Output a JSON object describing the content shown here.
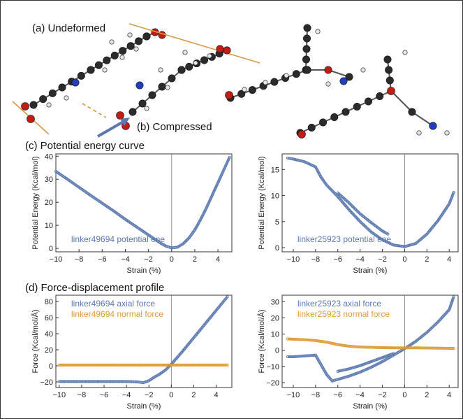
{
  "figure": {
    "label_a": "(a) Undeformed",
    "label_b": "(b) Compressed",
    "label_c": "(c) Potential energy curve",
    "label_d": "(d) Force-displacement profile",
    "colors": {
      "blue": "#5b79b0",
      "orange": "#dd9a35",
      "axis": "#333333"
    }
  },
  "chart_data": [
    {
      "type": "scatter",
      "xlabel": "Strain (%)",
      "ylabel": "Potential Energy (Kcal/mol)",
      "xlim": [
        -10,
        5.2
      ],
      "ylim": [
        -1.5,
        41
      ],
      "xticks": [
        -10,
        -8,
        -6,
        -4,
        -2,
        0,
        2,
        4
      ],
      "yticks": [
        0,
        10,
        20,
        30,
        40
      ],
      "legend_position": "bottom-left",
      "series": [
        {
          "name": "linker49694 potential ene",
          "color": "#5b79b0",
          "x": [
            -10,
            -9,
            -8,
            -7,
            -6,
            -5,
            -4,
            -3,
            -2,
            -1,
            -0.5,
            0,
            0.5,
            1,
            1.5,
            2,
            2.5,
            3,
            3.5,
            4,
            4.5,
            5
          ],
          "y": [
            33.4,
            30,
            26.5,
            23,
            19.6,
            16.2,
            12.6,
            9.2,
            5.8,
            2.4,
            1,
            0.2,
            0.5,
            2,
            4.5,
            8,
            12.5,
            17.5,
            23,
            28.5,
            34,
            39.5
          ]
        }
      ]
    },
    {
      "type": "scatter",
      "xlabel": "Strain (%)",
      "ylabel": "Potential Energy (Kcal/mol)",
      "xlim": [
        -11,
        4.8
      ],
      "ylim": [
        -0.8,
        18
      ],
      "xticks": [
        -10,
        -8,
        -6,
        -4,
        -2,
        0,
        2,
        4
      ],
      "yticks": [
        0,
        5,
        10,
        15
      ],
      "legend_position": "bottom-left",
      "series": [
        {
          "name": "linker25923 potential ene",
          "color": "#5b79b0",
          "x": [
            -10.5,
            -10,
            -9,
            -8,
            -7.5,
            -7,
            -6,
            -5,
            -4,
            -3,
            -2,
            -1,
            0,
            1,
            2,
            3,
            4,
            4.4
          ],
          "y": [
            17.2,
            17,
            16.5,
            15.5,
            13.5,
            12,
            9.8,
            7.3,
            5,
            3,
            1.5,
            0.5,
            0.2,
            0.8,
            2.6,
            5.2,
            8.4,
            10.6
          ]
        },
        {
          "name": "",
          "color": "#5b79b0",
          "x": [
            -6,
            -5,
            -4,
            -3,
            -2,
            -1.5
          ],
          "y": [
            10.5,
            8.6,
            6.5,
            4.8,
            3.2,
            2.6
          ]
        }
      ]
    },
    {
      "type": "scatter",
      "xlabel": "Strain (%)",
      "ylabel": "Force (Kcal/mol/Å)",
      "xlim": [
        -10.3,
        5.4
      ],
      "ylim": [
        -27,
        88
      ],
      "xticks": [
        -10,
        -8,
        -6,
        -4,
        -2,
        0,
        2,
        4
      ],
      "yticks": [
        -20,
        0,
        20,
        40,
        60,
        80
      ],
      "legend_position": "top-left",
      "series": [
        {
          "name": "linker49694 axial force",
          "color": "#5b79b0",
          "x": [
            -10,
            -8,
            -6,
            -4,
            -3,
            -2.5,
            -2,
            -1.5,
            -1,
            -0.5,
            0,
            1,
            2,
            3,
            4,
            5
          ],
          "y": [
            -19.5,
            -19.5,
            -19.5,
            -19.5,
            -20,
            -21,
            -18.5,
            -14,
            -10,
            -5,
            2,
            18,
            35,
            52,
            69,
            86
          ]
        },
        {
          "name": "linker49694 normal force",
          "color": "#dd9a35",
          "x": [
            -10,
            -8,
            -6,
            -4,
            -2,
            0,
            2,
            4,
            5
          ],
          "y": [
            1,
            1,
            1,
            1,
            1,
            1,
            1,
            1,
            1
          ]
        }
      ]
    },
    {
      "type": "scatter",
      "xlabel": "Strain (%)",
      "ylabel": "Force (Kcal/mol/Å)",
      "xlim": [
        -11,
        4.8
      ],
      "ylim": [
        -23,
        34
      ],
      "xticks": [
        -10,
        -8,
        -6,
        -4,
        -2,
        0,
        2,
        4
      ],
      "yticks": [
        -20,
        -10,
        0,
        10,
        20,
        30
      ],
      "legend_position": "top-left",
      "series": [
        {
          "name": "linker25923 axial force",
          "color": "#5b79b0",
          "x": [
            -10.5,
            -10,
            -9,
            -8,
            -7.5,
            -7,
            -6.5,
            -6,
            -5,
            -4,
            -3,
            -2,
            -1,
            0,
            1,
            2,
            3,
            4,
            4.4
          ],
          "y": [
            -4,
            -4,
            -3.5,
            -3,
            -9,
            -15,
            -19,
            -18,
            -16,
            -13.5,
            -10.5,
            -7,
            -3,
            1,
            5.5,
            11,
            17.5,
            25,
            33
          ]
        },
        {
          "name": "",
          "color": "#5b79b0",
          "x": [
            -6,
            -5,
            -4,
            -3,
            -2,
            -1
          ],
          "y": [
            -13,
            -11.5,
            -9.5,
            -7,
            -4.5,
            -2
          ]
        },
        {
          "name": "linker25923 normal force",
          "color": "#dd9a35",
          "x": [
            -10.5,
            -9,
            -8,
            -7,
            -6,
            -5,
            -4,
            -3,
            -2,
            -1,
            0,
            1,
            2,
            3,
            4,
            4.4
          ],
          "y": [
            7,
            6.5,
            6,
            5,
            3.5,
            2.5,
            2,
            1.8,
            1.6,
            1.5,
            1.5,
            1.5,
            1.4,
            1.3,
            1.2,
            1.2
          ]
        }
      ]
    }
  ]
}
